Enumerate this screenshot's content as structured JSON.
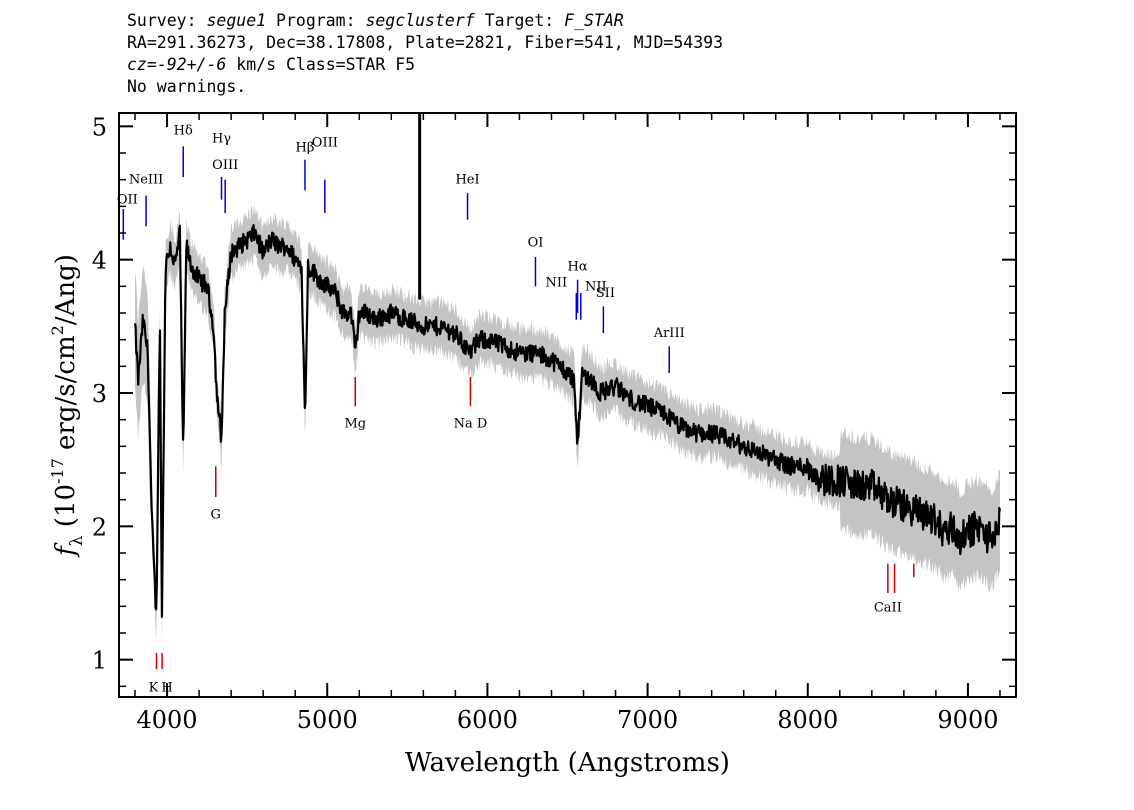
{
  "header": {
    "line1": {
      "survey_label": "Survey: ",
      "survey": "segue1",
      "program_label": " Program: ",
      "program": "segclusterf",
      "target_label": " Target: ",
      "target": "F_STAR"
    },
    "line2": "RA=291.36273, Dec=38.17808, Plate=2821, Fiber=541, MJD=54393",
    "line3": {
      "cz_label": "cz=",
      "cz_value": "-92+/-6",
      "cz_rest": " km/s Class=STAR F5"
    },
    "line4": "No warnings."
  },
  "chart_data": {
    "type": "line",
    "xlabel": "Wavelength (Angstroms)",
    "ylabel": "f_λ (10^-17 erg/s/cm^2/Ang)",
    "xlim": [
      3700,
      9300
    ],
    "ylim": [
      0.72,
      5.1
    ],
    "x_ticks": [
      4000,
      5000,
      6000,
      7000,
      8000,
      9000
    ],
    "y_ticks": [
      1,
      2,
      3,
      4,
      5
    ],
    "grid": false,
    "colors": {
      "spectrum": "#000000",
      "error": "#c4c4c4",
      "emission": "#0000cc",
      "absorption": "#cc0000"
    },
    "series": [
      {
        "style": "spectrum",
        "x": [
          3800,
          3820,
          3850,
          3880,
          3905,
          3933,
          3955,
          3968,
          3990,
          4020,
          4050,
          4080,
          4101,
          4120,
          4150,
          4200,
          4250,
          4290,
          4310,
          4340,
          4360,
          4400,
          4450,
          4500,
          4550,
          4600,
          4650,
          4700,
          4750,
          4800,
          4840,
          4861,
          4880,
          4920,
          4950,
          5000,
          5050,
          5100,
          5150,
          5175,
          5200,
          5250,
          5300,
          5400,
          5500,
          5600,
          5700,
          5800,
          5890,
          5950,
          6000,
          6100,
          6200,
          6300,
          6400,
          6500,
          6540,
          6563,
          6590,
          6650,
          6700,
          6800,
          6900,
          7000,
          7100,
          7200,
          7300,
          7400,
          7500,
          7600,
          7700,
          7800,
          7900,
          8000,
          8100,
          8200,
          8300,
          8400,
          8500,
          8600,
          8700,
          8800,
          8850,
          8900,
          8950,
          9000,
          9050,
          9100,
          9150,
          9200
        ],
        "y": [
          3.5,
          3.1,
          3.55,
          3.3,
          2.05,
          1.3,
          3.6,
          1.3,
          3.95,
          4.1,
          3.95,
          4.2,
          2.5,
          4.1,
          3.95,
          3.85,
          3.8,
          3.5,
          3.0,
          2.65,
          3.6,
          4.05,
          4.1,
          4.15,
          4.2,
          4.05,
          4.15,
          4.1,
          4.1,
          4.0,
          3.95,
          2.8,
          3.95,
          3.9,
          3.85,
          3.8,
          3.75,
          3.6,
          3.6,
          3.3,
          3.6,
          3.6,
          3.55,
          3.6,
          3.55,
          3.5,
          3.5,
          3.45,
          3.3,
          3.4,
          3.4,
          3.35,
          3.3,
          3.3,
          3.25,
          3.15,
          3.1,
          2.6,
          3.15,
          3.1,
          3.0,
          3.05,
          2.95,
          2.9,
          2.85,
          2.75,
          2.7,
          2.7,
          2.65,
          2.6,
          2.55,
          2.5,
          2.45,
          2.45,
          2.35,
          2.35,
          2.3,
          2.3,
          2.2,
          2.15,
          2.1,
          2.05,
          1.95,
          2.0,
          1.9,
          1.95,
          2.0,
          1.95,
          1.9,
          2.05
        ]
      }
    ],
    "annotations": [
      {
        "label": "OII",
        "x": 3727,
        "kind": "emission"
      },
      {
        "label": "NeIII",
        "x": 3869,
        "kind": "emission"
      },
      {
        "label": "Hδ",
        "x": 4101,
        "kind": "emission"
      },
      {
        "label": "Hγ",
        "x": 4340,
        "kind": "emission"
      },
      {
        "label": "OIII",
        "x": 4363,
        "kind": "emission"
      },
      {
        "label": "Hβ",
        "x": 4861,
        "kind": "emission"
      },
      {
        "label": "OIII",
        "x": 4985,
        "kind": "emission"
      },
      {
        "label": "HeI",
        "x": 5876,
        "kind": "emission"
      },
      {
        "label": "OI",
        "x": 6300,
        "kind": "emission"
      },
      {
        "label": "NII",
        "x": 6555,
        "kind": "emission"
      },
      {
        "label": "Hα",
        "x": 6563,
        "kind": "emission"
      },
      {
        "label": "NII",
        "x": 6583,
        "kind": "emission"
      },
      {
        "label": "SII",
        "x": 6724,
        "kind": "emission"
      },
      {
        "label": "ArIII",
        "x": 7135,
        "kind": "emission"
      },
      {
        "label": "K",
        "x": 3934,
        "kind": "absorption"
      },
      {
        "label": "H",
        "x": 3969,
        "kind": "absorption"
      },
      {
        "label": "G",
        "x": 4304,
        "kind": "absorption"
      },
      {
        "label": "Mg",
        "x": 5175,
        "kind": "absorption"
      },
      {
        "label": "Na D",
        "x": 5894,
        "kind": "absorption"
      },
      {
        "label": "CaII",
        "x": 8500,
        "kind": "absorption"
      }
    ]
  }
}
